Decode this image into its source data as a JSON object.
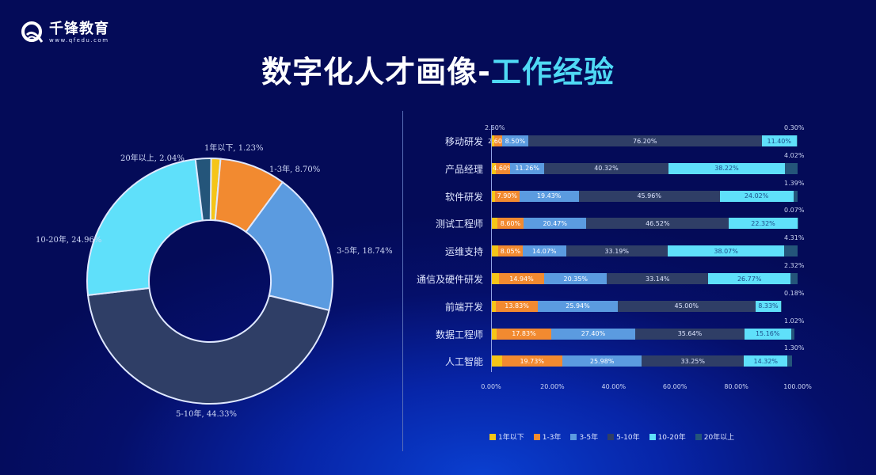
{
  "logo": {
    "name": "千锋教育",
    "url": "www.qfedu.com"
  },
  "title": {
    "main": "数字化人才画像-",
    "accent": "工作经验"
  },
  "colors": {
    "lt1": "#f5c518",
    "y1_3": "#f28a30",
    "y3_5": "#5b9be0",
    "y5_10": "#2f3e66",
    "y10_20": "#5fe0fa",
    "gt20": "#24557a",
    "title_accent": "#4fd9f4"
  },
  "chart_data": [
    {
      "type": "pie",
      "variant": "donut",
      "title": "",
      "labels": [
        "1年以下",
        "1-3年",
        "3-5年",
        "5-10年",
        "10-20年",
        "20年以上"
      ],
      "values": [
        1.23,
        8.7,
        18.74,
        44.33,
        24.96,
        2.04
      ],
      "label_texts": [
        "1年以下, 1.23%",
        "1-3年, 8.70%",
        "3-5年, 18.74%",
        "5-10年, 44.33%",
        "10-20年, 24.96%",
        "20年以上, 2.04%"
      ]
    },
    {
      "type": "bar",
      "orientation": "horizontal",
      "stacked": "100%",
      "categories": [
        "移动研发",
        "产品经理",
        "软件研发",
        "测试工程师",
        "运维支持",
        "通信及硬件研发",
        "前端开发",
        "数据工程师",
        "人工智能"
      ],
      "series": [
        {
          "name": "1年以下",
          "values": [
            1.0,
            1.58,
            1.3,
            2.02,
            2.31,
            2.48,
            1.5,
            1.8,
            3.5
          ]
        },
        {
          "name": "1-3年",
          "values": [
            2.6,
            4.6,
            7.9,
            8.6,
            8.05,
            14.94,
            13.83,
            17.83,
            19.73
          ]
        },
        {
          "name": "3-5年",
          "values": [
            8.5,
            11.26,
            19.43,
            20.47,
            14.07,
            20.35,
            25.94,
            27.4,
            25.98
          ]
        },
        {
          "name": "5-10年",
          "values": [
            76.2,
            40.32,
            45.96,
            46.52,
            33.19,
            33.14,
            45.0,
            35.64,
            33.25
          ]
        },
        {
          "name": "10-20年",
          "values": [
            11.4,
            38.22,
            24.02,
            22.32,
            38.07,
            26.77,
            8.33,
            15.16,
            14.32
          ]
        },
        {
          "name": "20年以上",
          "values": [
            0.3,
            4.02,
            1.39,
            0.07,
            4.31,
            2.32,
            0.18,
            1.02,
            1.3
          ]
        }
      ],
      "x_ticks": [
        "0.00%",
        "20.00%",
        "40.00%",
        "60.00%",
        "80.00%",
        "100.00%"
      ],
      "xlim": [
        0,
        100
      ],
      "legend_position": "bottom",
      "grid": false
    }
  ]
}
